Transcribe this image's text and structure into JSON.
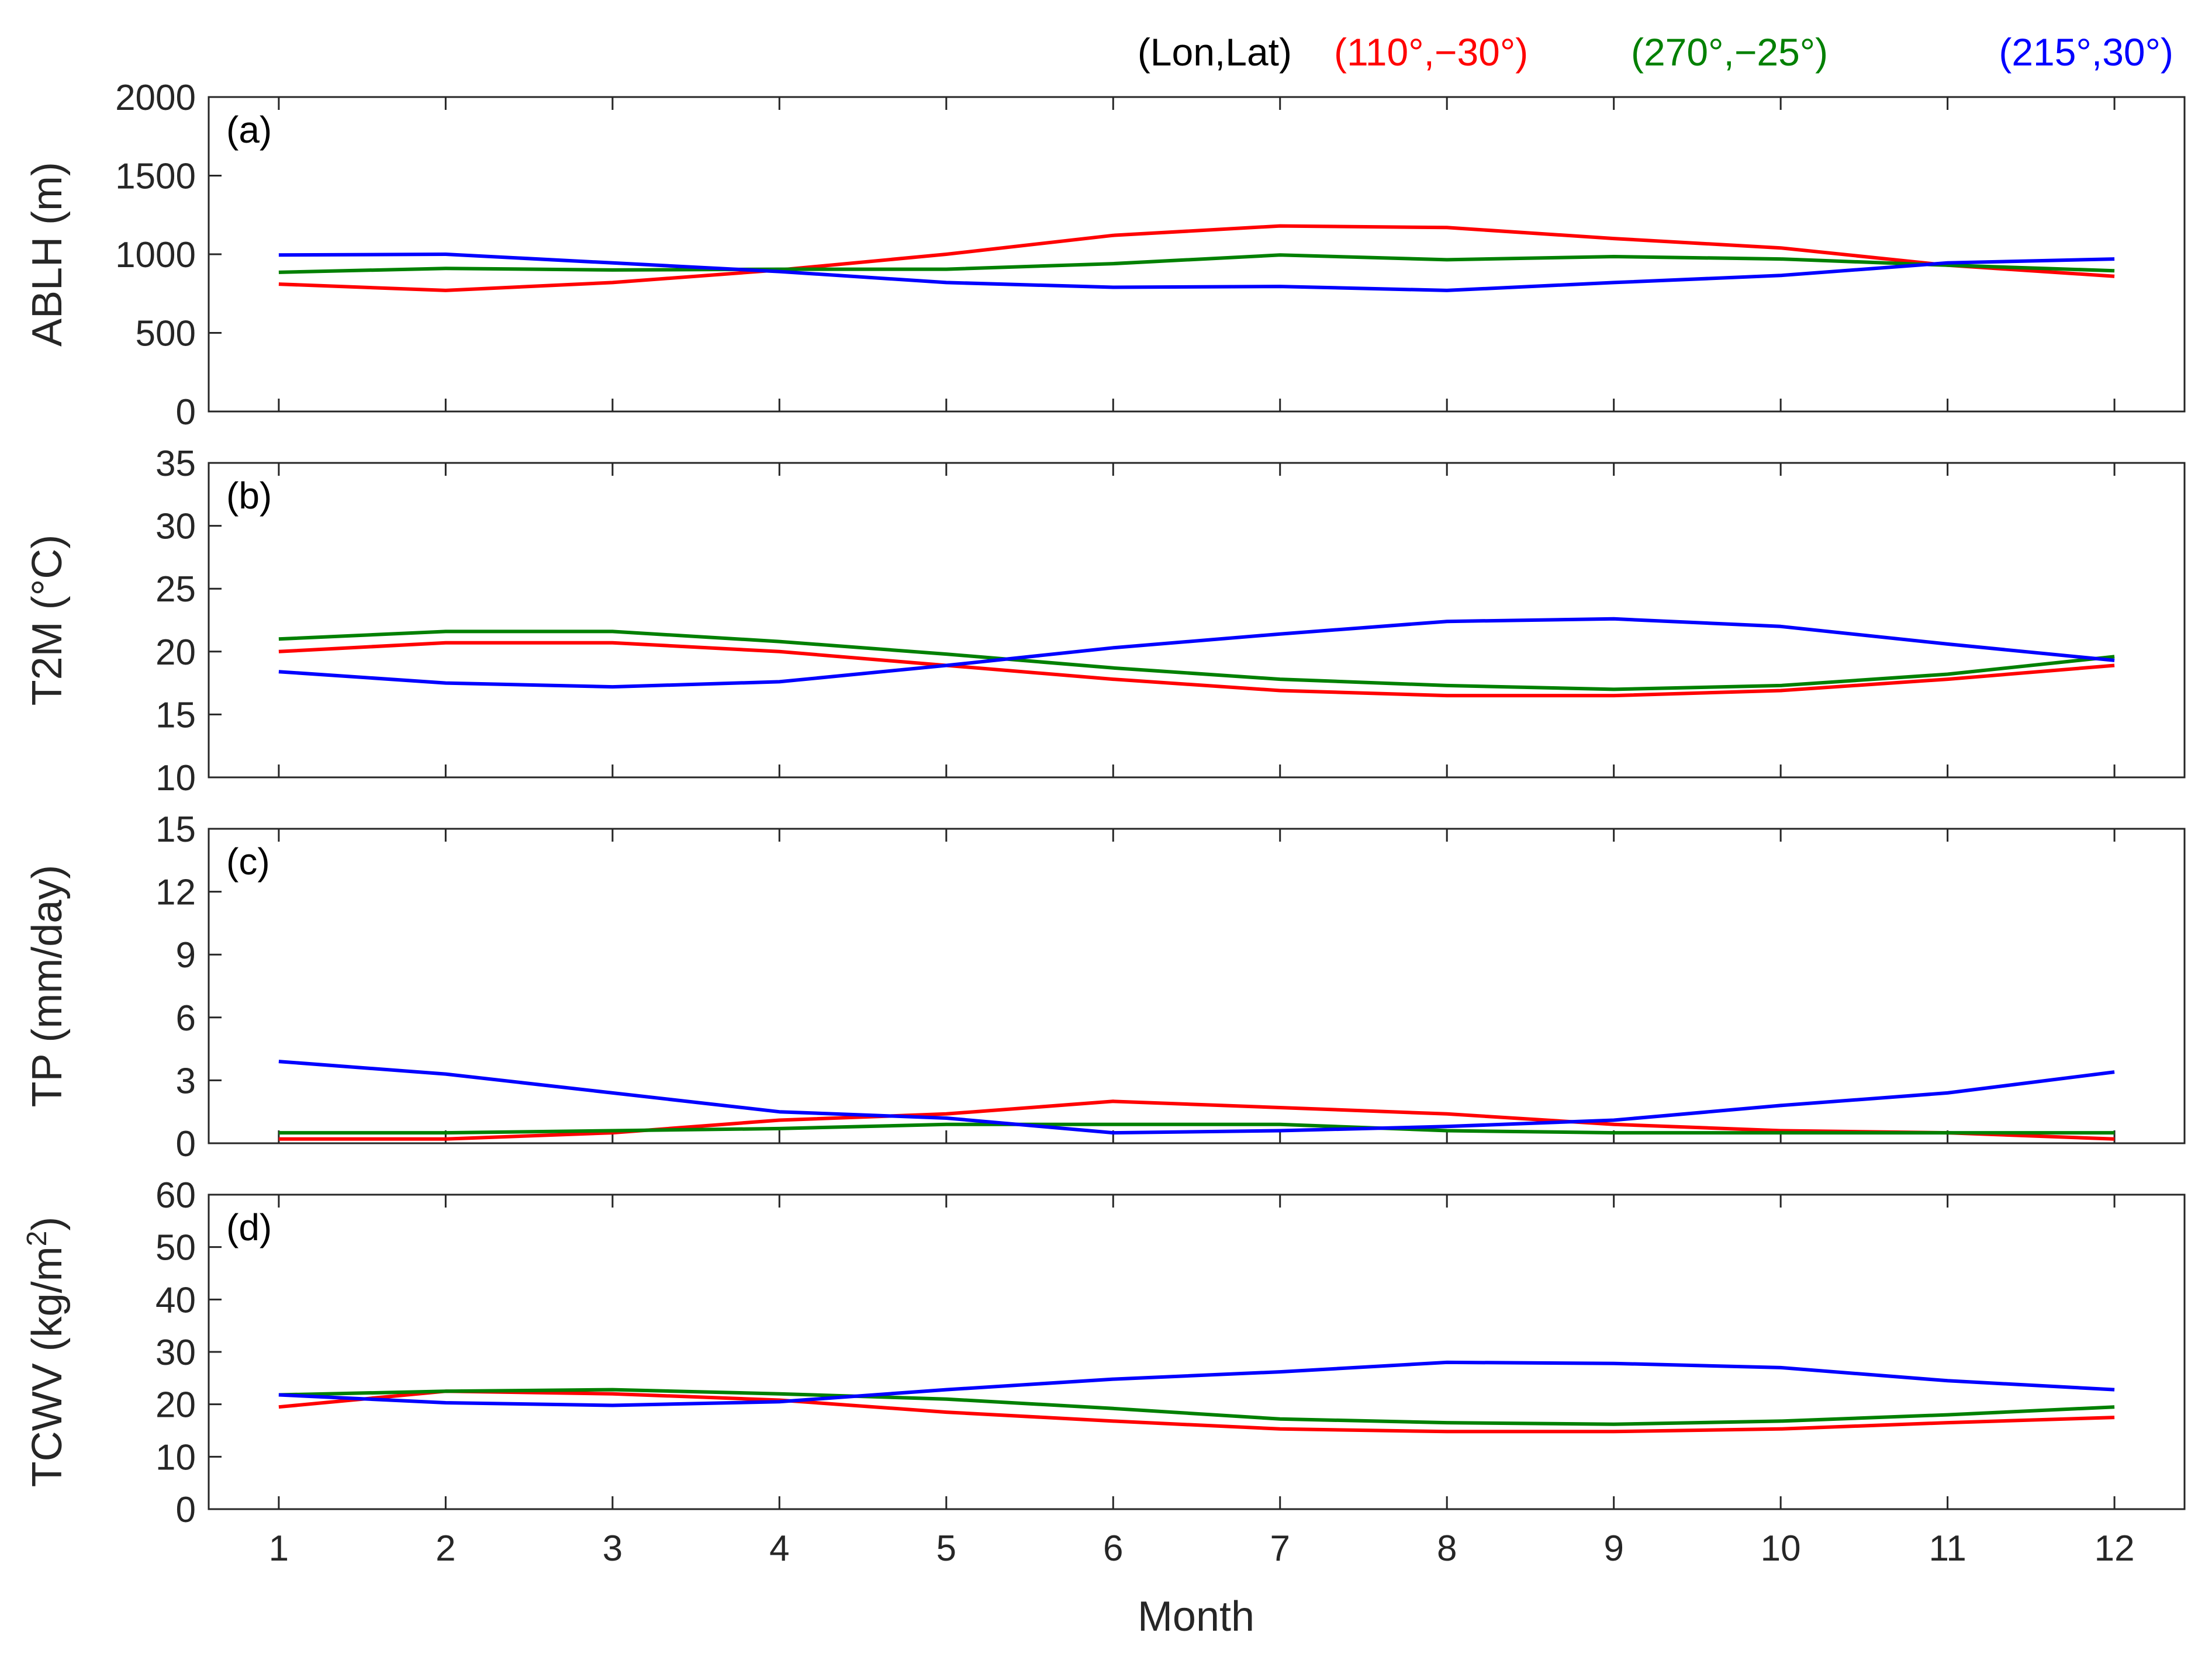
{
  "legend": {
    "header": "(Lon,Lat)",
    "entries": [
      {
        "label": "(110°,−30°)",
        "color": "#ff0000"
      },
      {
        "label": "(270°,−25°)",
        "color": "#008000"
      },
      {
        "label": "(215°,30°)",
        "color": "#0000ff"
      }
    ]
  },
  "chart_data": [
    {
      "type": "line",
      "panel_label": "(a)",
      "ylabel": "ABLH (m)",
      "ylim": [
        0,
        2000
      ],
      "yticks": [
        0,
        500,
        1000,
        1500,
        2000
      ],
      "x": [
        1,
        2,
        3,
        4,
        5,
        6,
        7,
        8,
        9,
        10,
        11,
        12
      ],
      "series": [
        {
          "name": "(110°,−30°)",
          "color": "#ff0000",
          "values": [
            810,
            770,
            820,
            900,
            1000,
            1120,
            1180,
            1170,
            1100,
            1040,
            930,
            860
          ]
        },
        {
          "name": "(270°,−25°)",
          "color": "#008000",
          "values": [
            885,
            910,
            900,
            905,
            905,
            940,
            995,
            965,
            985,
            970,
            930,
            895
          ]
        },
        {
          "name": "(215°,30°)",
          "color": "#0000ff",
          "values": [
            995,
            1000,
            945,
            890,
            820,
            790,
            795,
            770,
            820,
            865,
            945,
            970
          ]
        }
      ]
    },
    {
      "type": "line",
      "panel_label": "(b)",
      "ylabel": "T2M (°C)",
      "ylim": [
        10,
        35
      ],
      "yticks": [
        10,
        15,
        20,
        25,
        30,
        35
      ],
      "x": [
        1,
        2,
        3,
        4,
        5,
        6,
        7,
        8,
        9,
        10,
        11,
        12
      ],
      "series": [
        {
          "name": "(110°,−30°)",
          "color": "#ff0000",
          "values": [
            20.0,
            20.7,
            20.7,
            20.0,
            18.9,
            17.8,
            16.9,
            16.5,
            16.5,
            16.9,
            17.8,
            18.9
          ]
        },
        {
          "name": "(270°,−25°)",
          "color": "#008000",
          "values": [
            21.0,
            21.6,
            21.6,
            20.8,
            19.8,
            18.7,
            17.8,
            17.3,
            17.0,
            17.3,
            18.2,
            19.6
          ]
        },
        {
          "name": "(215°,30°)",
          "color": "#0000ff",
          "values": [
            18.4,
            17.5,
            17.2,
            17.6,
            18.9,
            20.3,
            21.4,
            22.4,
            22.6,
            22.0,
            20.6,
            19.3
          ]
        }
      ]
    },
    {
      "type": "line",
      "panel_label": "(c)",
      "ylabel": "TP (mm/day)",
      "ylim": [
        0,
        15
      ],
      "yticks": [
        0,
        3,
        6,
        9,
        12,
        15
      ],
      "x": [
        1,
        2,
        3,
        4,
        5,
        6,
        7,
        8,
        9,
        10,
        11,
        12
      ],
      "series": [
        {
          "name": "(110°,−30°)",
          "color": "#ff0000",
          "values": [
            0.2,
            0.2,
            0.5,
            1.1,
            1.4,
            2.0,
            1.7,
            1.4,
            0.9,
            0.6,
            0.5,
            0.2
          ]
        },
        {
          "name": "(270°,−25°)",
          "color": "#008000",
          "values": [
            0.5,
            0.5,
            0.6,
            0.7,
            0.9,
            0.9,
            0.9,
            0.6,
            0.5,
            0.5,
            0.5,
            0.5
          ]
        },
        {
          "name": "(215°,30°)",
          "color": "#0000ff",
          "values": [
            3.9,
            3.3,
            2.4,
            1.5,
            1.2,
            0.5,
            0.6,
            0.8,
            1.1,
            1.8,
            2.4,
            3.4
          ]
        }
      ]
    },
    {
      "type": "line",
      "panel_label": "(d)",
      "ylabel": "TCWV (kg/m",
      "ylabel_sup": "2",
      "ylabel_end": ")",
      "xlabel": "Month",
      "ylim": [
        0,
        60
      ],
      "yticks": [
        0,
        10,
        20,
        30,
        40,
        50,
        60
      ],
      "x": [
        1,
        2,
        3,
        4,
        5,
        6,
        7,
        8,
        9,
        10,
        11,
        12
      ],
      "xticks": [
        1,
        2,
        3,
        4,
        5,
        6,
        7,
        8,
        9,
        10,
        11,
        12
      ],
      "series": [
        {
          "name": "(110°,−30°)",
          "color": "#ff0000",
          "values": [
            19.5,
            22.5,
            22.0,
            20.8,
            18.5,
            16.8,
            15.3,
            14.8,
            14.8,
            15.3,
            16.5,
            17.5
          ]
        },
        {
          "name": "(270°,−25°)",
          "color": "#008000",
          "values": [
            21.8,
            22.5,
            22.8,
            22.0,
            21.0,
            19.2,
            17.2,
            16.5,
            16.2,
            16.8,
            18.0,
            19.5
          ]
        },
        {
          "name": "(215°,30°)",
          "color": "#0000ff",
          "values": [
            21.8,
            20.3,
            19.8,
            20.5,
            22.8,
            24.8,
            26.2,
            28.0,
            27.8,
            27.0,
            24.5,
            22.8
          ]
        }
      ]
    }
  ]
}
